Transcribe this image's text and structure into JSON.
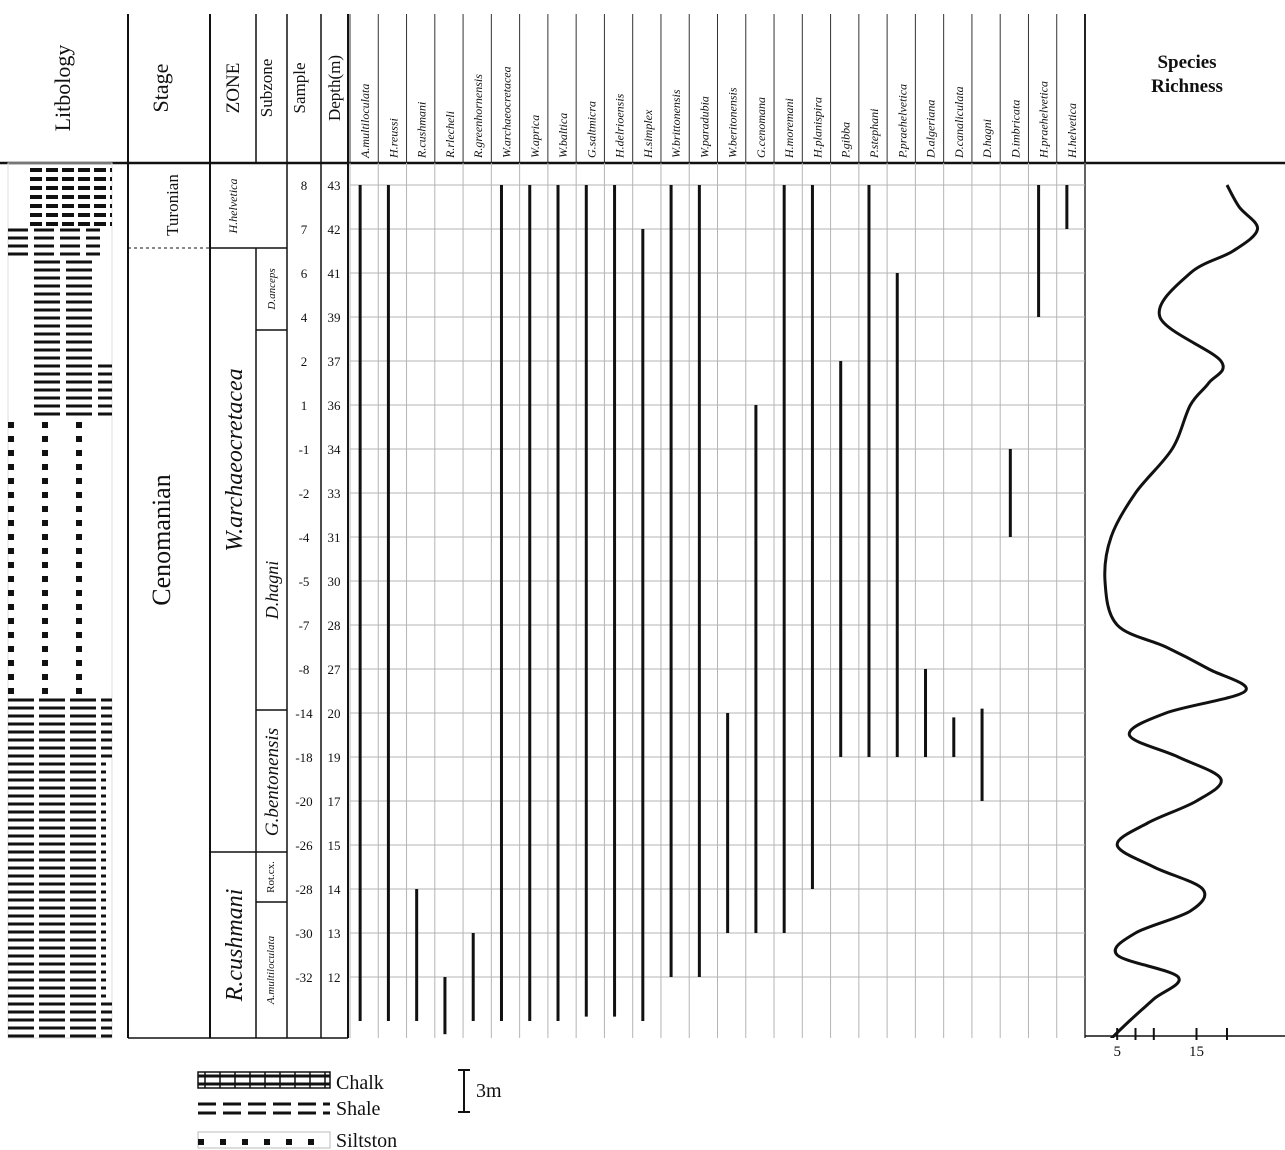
{
  "headers": {
    "lithology": "Litbology",
    "stage": "Stage",
    "zone": "ZONE",
    "subzone": "Subzone",
    "sample": "Sample",
    "depth": "Depth(m)",
    "richness_line1": "Species",
    "richness_line2": "Richness"
  },
  "stages": [
    "Turonian",
    "Cenomanian"
  ],
  "zones": [
    "H.helvetica",
    "W.archaeocretacea",
    "R.cushmani"
  ],
  "subzones": [
    "D.anceps",
    "D.hagni",
    "G.bentonensis",
    "Rot.cx.",
    "A.multiloculata"
  ],
  "samples": [
    "8",
    "7",
    "6",
    "4",
    "2",
    "1",
    "-1",
    "-2",
    "-4",
    "-5",
    "-7",
    "-8",
    "-14",
    "-18",
    "-20",
    "-26",
    "-28",
    "-30",
    "-32"
  ],
  "depths": [
    "43",
    "42",
    "41",
    "39",
    "37",
    "36",
    "34",
    "33",
    "31",
    "30",
    "28",
    "27",
    "20",
    "19",
    "17",
    "15",
    "14",
    "13",
    "12"
  ],
  "species": [
    {
      "name": "A.multiloculata",
      "top": 0,
      "bottom": 19
    },
    {
      "name": "H.reussi",
      "top": 0,
      "bottom": 19
    },
    {
      "name": "R.cushmani",
      "top": 16,
      "bottom": 19
    },
    {
      "name": "R.rlecheli",
      "top": 18,
      "bottom": 19.3
    },
    {
      "name": "R.greenhornensis",
      "top": 17,
      "bottom": 19
    },
    {
      "name": "W.archaeocretacea",
      "top": 0,
      "bottom": 19
    },
    {
      "name": "W.aprica",
      "top": 0,
      "bottom": 19
    },
    {
      "name": "W.baltica",
      "top": 0,
      "bottom": 19
    },
    {
      "name": "G.saltmicra",
      "top": 0,
      "bottom": 18.9
    },
    {
      "name": "H.delrioensis",
      "top": 0,
      "bottom": 18.9
    },
    {
      "name": "H.simplex",
      "top": 1,
      "bottom": 19
    },
    {
      "name": "W.brittonensis",
      "top": 0,
      "bottom": 18
    },
    {
      "name": "W.paradubia",
      "top": 0,
      "bottom": 18
    },
    {
      "name": "W.beritonensis",
      "top": 12,
      "bottom": 17
    },
    {
      "name": "G.cenomana",
      "top": 5,
      "bottom": 17
    },
    {
      "name": "H.moremani",
      "top": 0,
      "bottom": 17
    },
    {
      "name": "H.planispira",
      "top": 0,
      "bottom": 16
    },
    {
      "name": "P.gibba",
      "top": 4,
      "bottom": 13
    },
    {
      "name": "P.stephani",
      "top": 0,
      "bottom": 13
    },
    {
      "name": "P.praehelvetica",
      "top": 2,
      "bottom": 13
    },
    {
      "name": "D.algeriana",
      "top": 11,
      "bottom": 13
    },
    {
      "name": "D.canaliculata",
      "top": 12.1,
      "bottom": 13
    },
    {
      "name": "D.hagni",
      "top": 11.9,
      "bottom": 14
    },
    {
      "name": "D.imbricata",
      "top": 6,
      "bottom": 8
    },
    {
      "name": "H.praehelvetica",
      "top": 0,
      "bottom": 3
    },
    {
      "name": "H.helvetica",
      "top": 0,
      "bottom": 1
    }
  ],
  "richness_axis": {
    "tick_labels": [
      "5",
      "15"
    ],
    "ticks": [
      2,
      5,
      8,
      15,
      20
    ]
  },
  "richness_curve": [
    {
      "level": 0,
      "value": 20
    },
    {
      "level": 0.5,
      "value": 22
    },
    {
      "level": 1,
      "value": 25
    },
    {
      "level": 1.5,
      "value": 21
    },
    {
      "level": 2,
      "value": 14
    },
    {
      "level": 3,
      "value": 9
    },
    {
      "level": 4,
      "value": 19
    },
    {
      "level": 4.5,
      "value": 17
    },
    {
      "level": 5,
      "value": 14
    },
    {
      "level": 6,
      "value": 11
    },
    {
      "level": 7,
      "value": 5
    },
    {
      "level": 8,
      "value": 1
    },
    {
      "level": 9,
      "value": 0
    },
    {
      "level": 10,
      "value": 2
    },
    {
      "level": 10.5,
      "value": 10
    },
    {
      "level": 11,
      "value": 17
    },
    {
      "level": 11.5,
      "value": 23
    },
    {
      "level": 12,
      "value": 10
    },
    {
      "level": 12.5,
      "value": 4
    },
    {
      "level": 13,
      "value": 12
    },
    {
      "level": 13.5,
      "value": 19
    },
    {
      "level": 14,
      "value": 15
    },
    {
      "level": 14.5,
      "value": 7
    },
    {
      "level": 15,
      "value": 2
    },
    {
      "level": 15.5,
      "value": 8
    },
    {
      "level": 16,
      "value": 16
    },
    {
      "level": 16.5,
      "value": 14
    },
    {
      "level": 17,
      "value": 5
    },
    {
      "level": 17.5,
      "value": 2
    },
    {
      "level": 18,
      "value": 12
    },
    {
      "level": 18.5,
      "value": 8
    },
    {
      "level": 19,
      "value": 4
    },
    {
      "level": 19.4,
      "value": 1
    }
  ],
  "legend": {
    "chalk": "Chalk",
    "shale": "Shale",
    "siltstone": "Siltston",
    "scale": "3m"
  }
}
